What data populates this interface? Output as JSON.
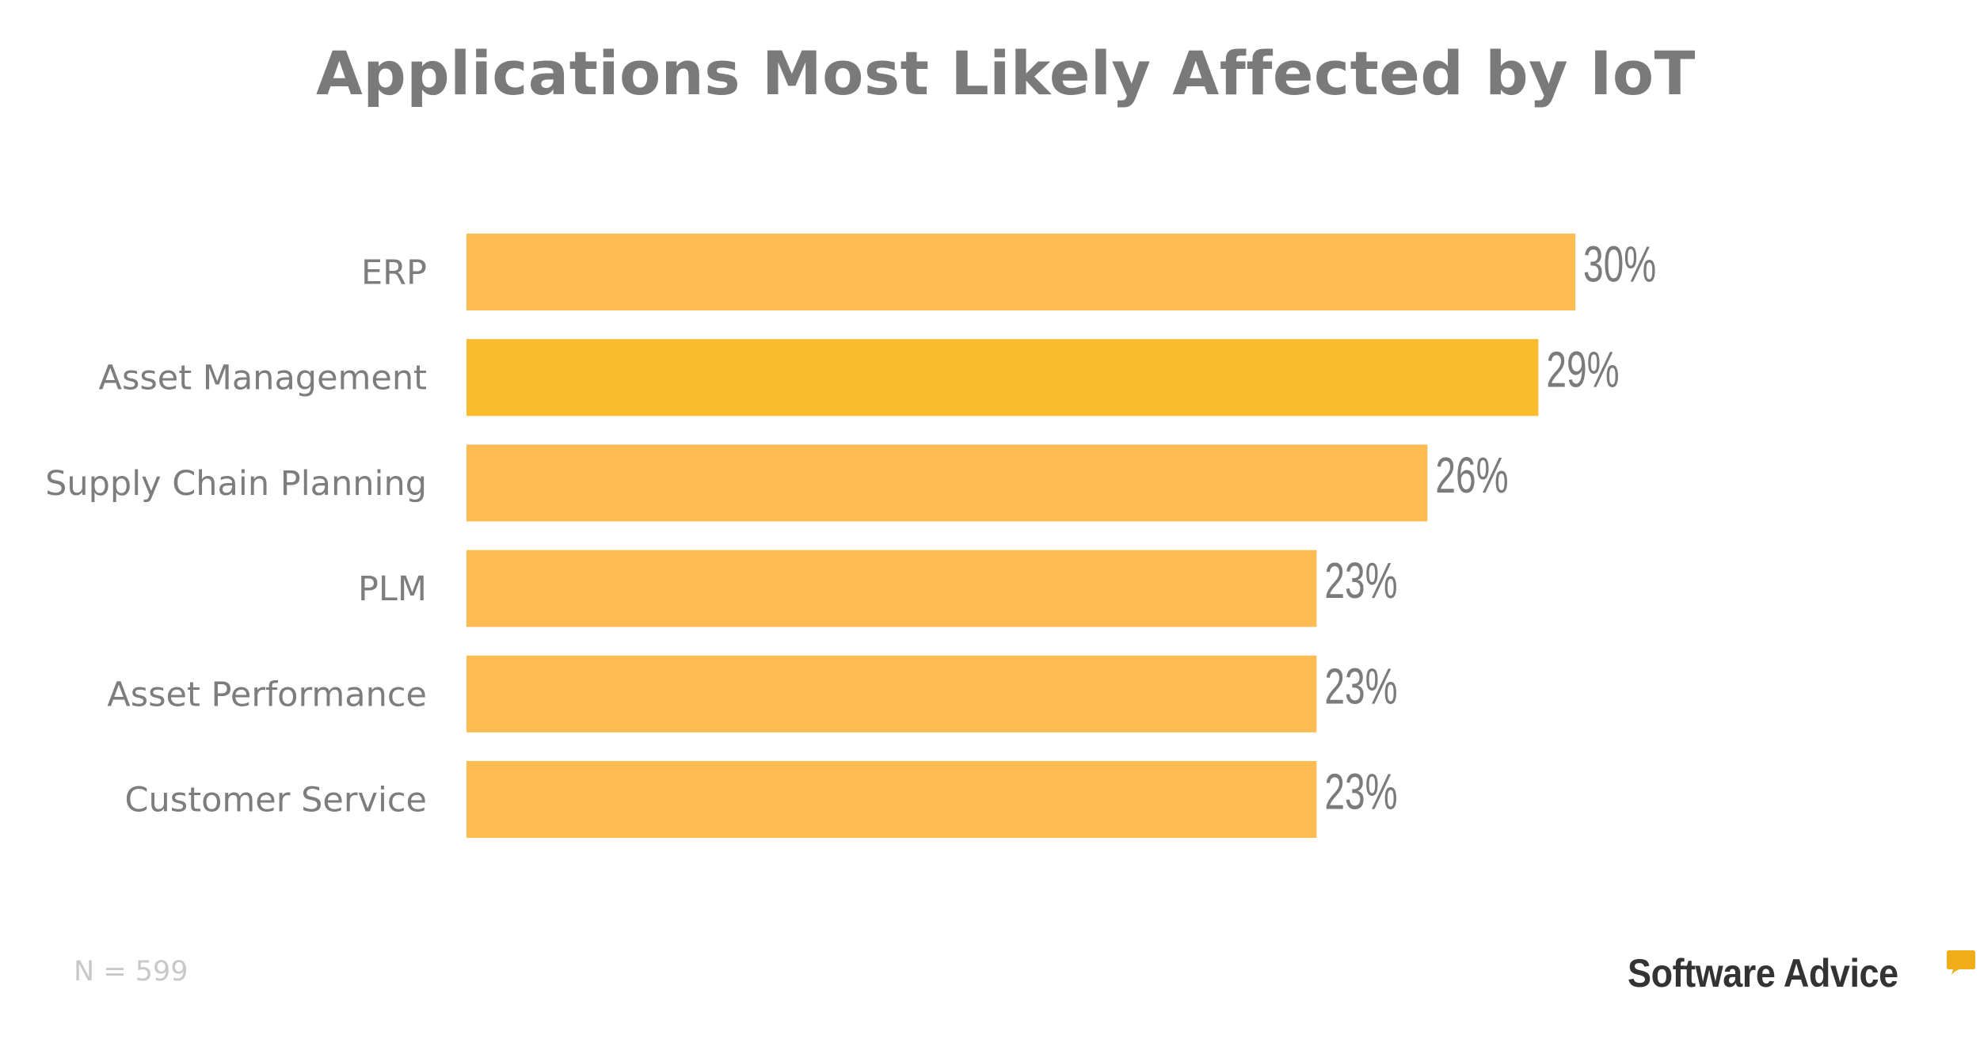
{
  "chart_data": {
    "type": "bar",
    "orientation": "horizontal",
    "title": "Applications Most Likely Affected by IoT",
    "categories": [
      "ERP",
      "Asset Management",
      "Supply Chain Planning",
      "PLM",
      "Asset Performance",
      "Customer Service"
    ],
    "values": [
      30,
      29,
      26,
      23,
      23,
      23
    ],
    "value_labels": [
      "30%",
      "29%",
      "26%",
      "23%",
      "23%",
      "23%"
    ],
    "unit": "%",
    "xlim": [
      0,
      30
    ],
    "grid": false,
    "colors": {
      "default": "#fcbc52",
      "highlight": "#f7bb2c"
    },
    "highlight_index": 1
  },
  "footnote": "N = 599",
  "logo": {
    "text": "Software Advice",
    "mark": "speech-bubble",
    "color": "#f0ad18"
  }
}
